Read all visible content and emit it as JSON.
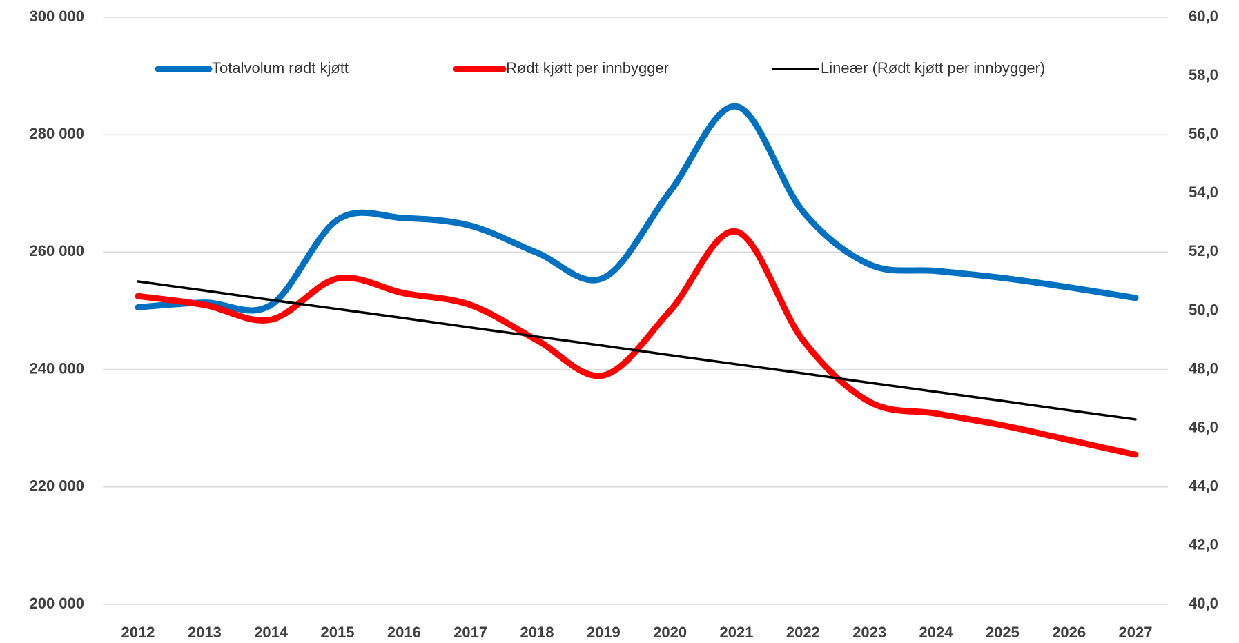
{
  "chart_data": {
    "type": "line",
    "categories": [
      "2012",
      "2013",
      "2014",
      "2015",
      "2016",
      "2017",
      "2018",
      "2019",
      "2020",
      "2021",
      "2022",
      "2023",
      "2024",
      "2025",
      "2026",
      "2027"
    ],
    "series": [
      {
        "name": "Totalvolum rødt kjøtt",
        "color": "#0070c0",
        "axis": "y",
        "values": [
          250600,
          251400,
          251000,
          265500,
          265800,
          264500,
          259900,
          255600,
          270300,
          284800,
          266900,
          257900,
          256800,
          255600,
          254000,
          252200
        ]
      },
      {
        "name": "Rødt kjøtt per innbygger",
        "color": "#ff0000",
        "axis": "y2",
        "values": [
          50.5,
          50.2,
          49.7,
          51.1,
          50.6,
          50.2,
          49.0,
          47.8,
          50.0,
          52.7,
          49.0,
          46.9,
          46.5,
          46.1,
          45.6,
          45.1
        ]
      },
      {
        "name": "Lineær (Rødt kjøtt per innbygger)",
        "color": "#000000",
        "axis": "y2",
        "values": [
          51.0,
          50.69,
          50.37,
          50.06,
          49.75,
          49.43,
          49.12,
          48.81,
          48.49,
          48.18,
          47.87,
          47.55,
          47.24,
          46.93,
          46.61,
          46.3
        ]
      }
    ],
    "ylim": [
      200000,
      300000
    ],
    "yticks": [
      {
        "value": 200000,
        "label": "200 000"
      },
      {
        "value": 220000,
        "label": "220 000"
      },
      {
        "value": 240000,
        "label": "240 000"
      },
      {
        "value": 260000,
        "label": "260 000"
      },
      {
        "value": 280000,
        "label": "280 000"
      },
      {
        "value": 300000,
        "label": "300 000"
      }
    ],
    "y2lim": [
      40,
      60
    ],
    "y2ticks": [
      {
        "value": 40,
        "label": "40,0"
      },
      {
        "value": 42,
        "label": "42,0"
      },
      {
        "value": 44,
        "label": "44,0"
      },
      {
        "value": 46,
        "label": "46,0"
      },
      {
        "value": 48,
        "label": "48,0"
      },
      {
        "value": 50,
        "label": "50,0"
      },
      {
        "value": 52,
        "label": "52,0"
      },
      {
        "value": 54,
        "label": "54,0"
      },
      {
        "value": 56,
        "label": "56,0"
      },
      {
        "value": 58,
        "label": "58,0"
      },
      {
        "value": 60,
        "label": "60,0"
      }
    ],
    "grid": true,
    "legend": "top"
  }
}
